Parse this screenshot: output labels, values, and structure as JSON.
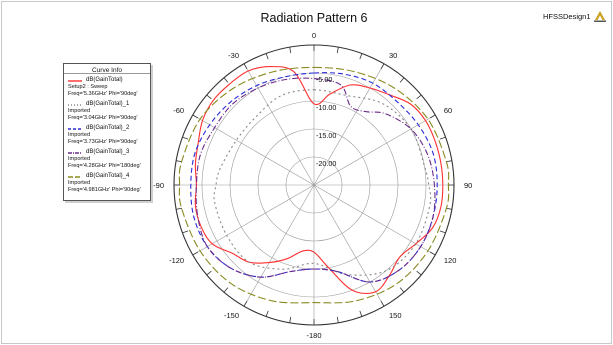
{
  "window": {
    "design_name": "HFSSDesign1",
    "logo_icon": "ansys-logo-icon"
  },
  "legend": {
    "title": "Curve Info",
    "entries": [
      {
        "name": "dB(GainTotal)",
        "lines": [
          "Setup2 : Sweep",
          "Freq='5.36GHz' Phi='90deg'"
        ]
      },
      {
        "name": "dB(GainTotal)_1",
        "lines": [
          "Imported",
          "Freq='3.04GHz' Phi='90deg'"
        ]
      },
      {
        "name": "dB(GainTotal)_2",
        "lines": [
          "Imported",
          "Freq='3.73GHz' Phi='90deg'"
        ]
      },
      {
        "name": "dB(GainTotal)_3",
        "lines": [
          "Imported",
          "Freq='4.28GHz' Phi='180deg'"
        ]
      },
      {
        "name": "dB(GainTotal)_4",
        "lines": [
          "Imported",
          "Freq='4.981GHz' Phi='90deg'"
        ]
      }
    ]
  },
  "chart_data": {
    "type": "polar",
    "title": "Radiation Pattern 6",
    "radial_ticks": [
      "-5.00",
      "-10.00",
      "-15.00",
      "-20.00"
    ],
    "radial_values": [
      -5,
      -10,
      -15,
      -20
    ],
    "r_range": [
      -25,
      0
    ],
    "angle_labels": [
      {
        "angle": 0,
        "text": "0"
      },
      {
        "angle": 30,
        "text": "30"
      },
      {
        "angle": 60,
        "text": "60"
      },
      {
        "angle": 90,
        "text": "90"
      },
      {
        "angle": 120,
        "text": "120"
      },
      {
        "angle": 150,
        "text": "150"
      },
      {
        "angle": 180,
        "text": "-180"
      },
      {
        "angle": -150,
        "text": "-150"
      },
      {
        "angle": -120,
        "text": "-120"
      },
      {
        "angle": -90,
        "text": "-90"
      },
      {
        "angle": -60,
        "text": "-60"
      },
      {
        "angle": -30,
        "text": "-30"
      }
    ],
    "angle_convention": "0 deg at top, clockwise positive",
    "series_ref": "legend.entries",
    "series": [
      {
        "color": "#ff3030",
        "dash": "",
        "points": [
          [
            0,
            -10.5
          ],
          [
            10,
            -8.5
          ],
          [
            20,
            -6
          ],
          [
            30,
            -5
          ],
          [
            40,
            -4
          ],
          [
            50,
            -2.5
          ],
          [
            60,
            -2
          ],
          [
            70,
            -2
          ],
          [
            80,
            -2
          ],
          [
            90,
            -2
          ],
          [
            100,
            -2
          ],
          [
            110,
            -2.5
          ],
          [
            120,
            -4
          ],
          [
            130,
            -5
          ],
          [
            140,
            -4
          ],
          [
            150,
            -3
          ],
          [
            160,
            -5
          ],
          [
            170,
            -10
          ],
          [
            180,
            -13
          ],
          [
            -170,
            -13
          ],
          [
            -160,
            -11
          ],
          [
            -150,
            -9
          ],
          [
            -140,
            -7
          ],
          [
            -130,
            -6
          ],
          [
            -120,
            -4
          ],
          [
            -110,
            -3.5
          ],
          [
            -100,
            -3.5
          ],
          [
            -90,
            -4
          ],
          [
            -80,
            -3.5
          ],
          [
            -70,
            -3
          ],
          [
            -60,
            -2
          ],
          [
            -50,
            -1.5
          ],
          [
            -40,
            -1.5
          ],
          [
            -30,
            -1.5
          ],
          [
            -20,
            -2.5
          ],
          [
            -10,
            -4.5
          ]
        ]
      },
      {
        "color": "#888888",
        "dash": "2,3",
        "points": [
          [
            0,
            -8
          ],
          [
            20,
            -8
          ],
          [
            40,
            -6
          ],
          [
            60,
            -5
          ],
          [
            80,
            -5
          ],
          [
            90,
            -4.5
          ],
          [
            100,
            -4
          ],
          [
            120,
            -4
          ],
          [
            140,
            -5
          ],
          [
            160,
            -8
          ],
          [
            180,
            -11
          ],
          [
            -160,
            -9
          ],
          [
            -140,
            -7
          ],
          [
            -120,
            -7
          ],
          [
            -100,
            -7
          ],
          [
            -90,
            -7.5
          ],
          [
            -80,
            -8
          ],
          [
            -60,
            -9
          ],
          [
            -40,
            -9
          ],
          [
            -20,
            -8
          ]
        ]
      },
      {
        "color": "#2a2ad8",
        "dash": "5,3",
        "points": [
          [
            0,
            -5
          ],
          [
            15,
            -4.5
          ],
          [
            30,
            -4
          ],
          [
            45,
            -4
          ],
          [
            60,
            -3.5
          ],
          [
            75,
            -3
          ],
          [
            90,
            -3
          ],
          [
            105,
            -3
          ],
          [
            120,
            -3
          ],
          [
            135,
            -3.5
          ],
          [
            150,
            -5
          ],
          [
            165,
            -9
          ],
          [
            180,
            -10
          ],
          [
            -165,
            -9
          ],
          [
            -150,
            -6
          ],
          [
            -135,
            -4
          ],
          [
            -120,
            -3
          ],
          [
            -105,
            -2.8
          ],
          [
            -90,
            -3
          ],
          [
            -75,
            -3
          ],
          [
            -60,
            -3.5
          ],
          [
            -45,
            -4
          ],
          [
            -30,
            -4.5
          ],
          [
            -15,
            -5
          ]
        ]
      },
      {
        "color": "#6a2a8a",
        "dash": "6,2,1,2",
        "points": [
          [
            0,
            -6
          ],
          [
            15,
            -6.5
          ],
          [
            25,
            -9.5
          ],
          [
            35,
            -9
          ],
          [
            45,
            -7
          ],
          [
            60,
            -5
          ],
          [
            75,
            -4
          ],
          [
            90,
            -3.5
          ],
          [
            105,
            -3
          ],
          [
            120,
            -3
          ],
          [
            135,
            -3.5
          ],
          [
            150,
            -5
          ],
          [
            165,
            -9
          ],
          [
            180,
            -10
          ],
          [
            -165,
            -9
          ],
          [
            -150,
            -6
          ],
          [
            -135,
            -4
          ],
          [
            -120,
            -3
          ],
          [
            -105,
            -3.5
          ],
          [
            -90,
            -4
          ],
          [
            -75,
            -4
          ],
          [
            -60,
            -4.5
          ],
          [
            -45,
            -4.5
          ],
          [
            -30,
            -5
          ],
          [
            -15,
            -5.5
          ]
        ]
      },
      {
        "color": "#8a8a20",
        "dash": "8,3",
        "points": [
          [
            0,
            -4
          ],
          [
            20,
            -3.5
          ],
          [
            40,
            -2.5
          ],
          [
            60,
            -1.5
          ],
          [
            80,
            -1
          ],
          [
            90,
            -1
          ],
          [
            100,
            -1
          ],
          [
            120,
            -1.5
          ],
          [
            140,
            -2
          ],
          [
            160,
            -3
          ],
          [
            180,
            -4
          ],
          [
            -160,
            -3
          ],
          [
            -140,
            -2
          ],
          [
            -120,
            -1.5
          ],
          [
            -100,
            -1
          ],
          [
            -90,
            -1
          ],
          [
            -80,
            -1
          ],
          [
            -60,
            -1.5
          ],
          [
            -40,
            -2.5
          ],
          [
            -20,
            -3.5
          ]
        ]
      }
    ]
  }
}
